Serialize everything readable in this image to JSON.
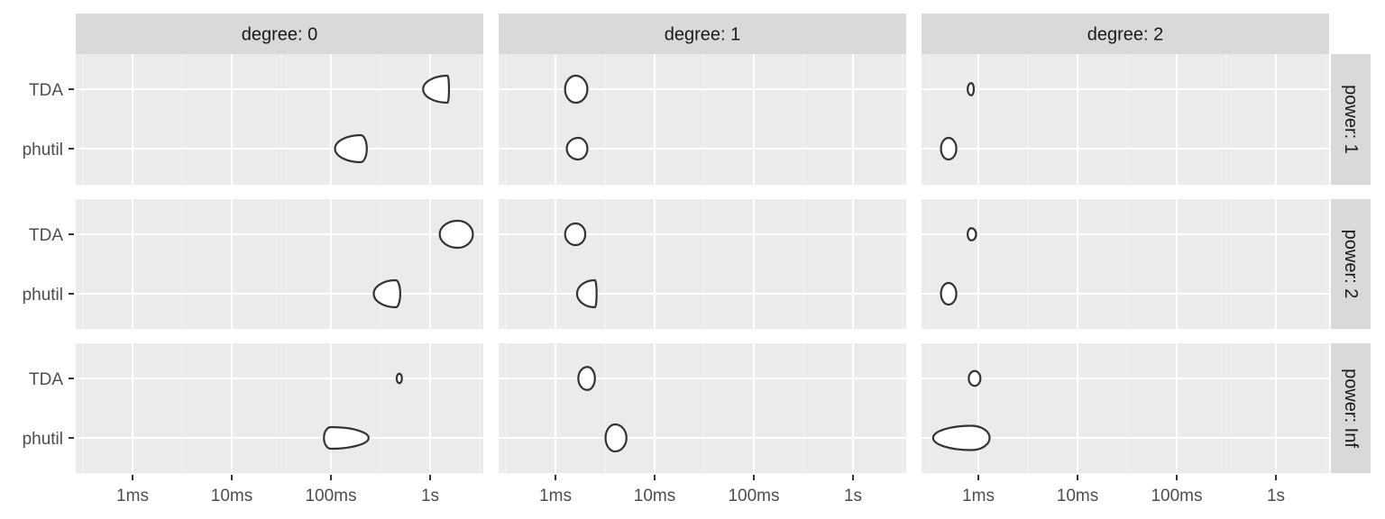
{
  "chart_data": {
    "type": "violin",
    "x_scale": "log10",
    "x_ticks": [
      0.001,
      0.01,
      0.1,
      1
    ],
    "x_tick_labels": [
      "1ms",
      "10ms",
      "100ms",
      "1s"
    ],
    "y_categories": [
      "TDA",
      "phutil"
    ],
    "col_facet_labels": [
      "degree: 0",
      "degree: 1",
      "degree: 2"
    ],
    "row_facet_labels": [
      "power: 1",
      "power: 2",
      "power: Inf"
    ],
    "panels": [
      {
        "row": 0,
        "col": 0,
        "violins": [
          {
            "category": "TDA",
            "min": 0.85,
            "max": 1.55,
            "peak": 1.5,
            "width": 1.0
          },
          {
            "category": "phutil",
            "min": 0.11,
            "max": 0.23,
            "peak": 0.2,
            "width": 1.0
          }
        ]
      },
      {
        "row": 0,
        "col": 1,
        "violins": [
          {
            "category": "TDA",
            "min": 0.00125,
            "max": 0.0021,
            "peak": 0.0016,
            "width": 1.0
          },
          {
            "category": "phutil",
            "min": 0.0013,
            "max": 0.0021,
            "peak": 0.0017,
            "width": 0.8
          }
        ]
      },
      {
        "row": 0,
        "col": 2,
        "violins": [
          {
            "category": "TDA",
            "min": 0.00078,
            "max": 0.0009,
            "peak": 0.00085,
            "width": 0.45
          },
          {
            "category": "phutil",
            "min": 0.00042,
            "max": 0.0006,
            "peak": 0.0005,
            "width": 0.8
          }
        ]
      },
      {
        "row": 1,
        "col": 0,
        "violins": [
          {
            "category": "TDA",
            "min": 1.25,
            "max": 2.7,
            "peak": 1.9,
            "width": 1.0
          },
          {
            "category": "phutil",
            "min": 0.27,
            "max": 0.5,
            "peak": 0.45,
            "width": 1.0
          }
        ]
      },
      {
        "row": 1,
        "col": 1,
        "violins": [
          {
            "category": "TDA",
            "min": 0.00125,
            "max": 0.002,
            "peak": 0.0016,
            "width": 0.8
          },
          {
            "category": "phutil",
            "min": 0.00165,
            "max": 0.0026,
            "peak": 0.0025,
            "width": 1.0
          }
        ]
      },
      {
        "row": 1,
        "col": 2,
        "violins": [
          {
            "category": "TDA",
            "min": 0.00078,
            "max": 0.00095,
            "peak": 0.00085,
            "width": 0.45
          },
          {
            "category": "phutil",
            "min": 0.00042,
            "max": 0.0006,
            "peak": 0.0005,
            "width": 0.8
          }
        ]
      },
      {
        "row": 2,
        "col": 0,
        "violins": [
          {
            "category": "TDA",
            "min": 0.46,
            "max": 0.52,
            "peak": 0.49,
            "width": 0.35
          },
          {
            "category": "phutil",
            "min": 0.085,
            "max": 0.24,
            "peak": 0.1,
            "width": 0.8
          }
        ]
      },
      {
        "row": 2,
        "col": 1,
        "violins": [
          {
            "category": "TDA",
            "min": 0.0017,
            "max": 0.0025,
            "peak": 0.0021,
            "width": 0.85
          },
          {
            "category": "phutil",
            "min": 0.0032,
            "max": 0.0052,
            "peak": 0.004,
            "width": 1.0
          }
        ]
      },
      {
        "row": 2,
        "col": 2,
        "violins": [
          {
            "category": "TDA",
            "min": 0.0008,
            "max": 0.00105,
            "peak": 0.00092,
            "width": 0.55
          },
          {
            "category": "phutil",
            "min": 0.00035,
            "max": 0.0013,
            "peak": 0.00085,
            "width": 0.9
          }
        ]
      }
    ]
  },
  "colors": {
    "panel_background": "#ebebeb",
    "grid_major": "#ffffff",
    "grid_minor": "#f2f2f2",
    "strip_background": "#d9d9d9",
    "violin_outline": "#333333",
    "violin_fill": "#ffffff"
  }
}
